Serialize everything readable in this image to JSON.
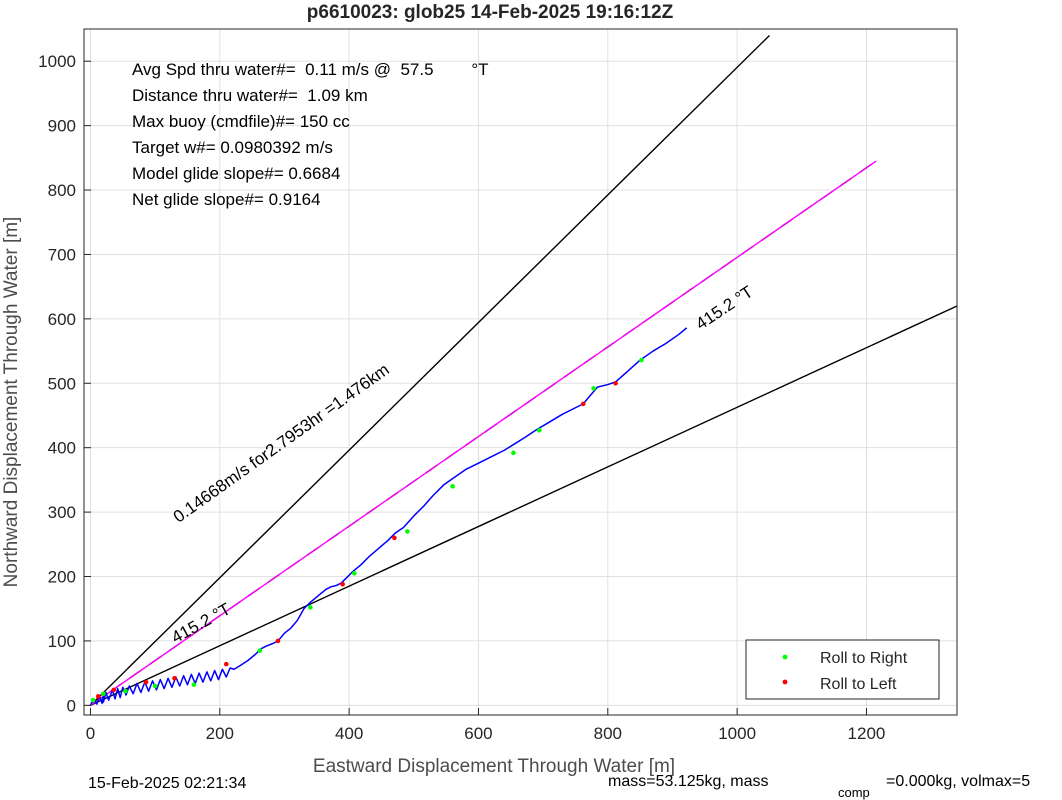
{
  "chart_data": {
    "type": "line",
    "title": "p6610023: glob25 14-Feb-2025 19:16:12Z",
    "xlabel": "Eastward Displacement Through Water [m]",
    "ylabel": "Northward Displacement Through Water [m]",
    "xlim": [
      -10,
      1340
    ],
    "ylim": [
      -15,
      1050
    ],
    "xticks": [
      0,
      200,
      400,
      600,
      800,
      1000,
      1200
    ],
    "yticks": [
      0,
      100,
      200,
      300,
      400,
      500,
      600,
      700,
      800,
      900,
      1000
    ],
    "grid": true,
    "legend_position": "bottom-right",
    "legend": [
      {
        "label": "Roll to Right",
        "color": "#00ff00"
      },
      {
        "label": "Roll to Left",
        "color": "#ff0000"
      }
    ],
    "info_lines": [
      "Avg Spd thru water#=  0.11 m/s @  57.5        °T",
      "Distance thru water#=  1.09 km",
      "Max buoy (cmdfile)#= 150 cc",
      "Target w#= 0.0980392 m/s",
      "Model glide slope#= 0.6684",
      "Net glide slope#= 0.9164"
    ],
    "annotations": [
      {
        "text": "415.2 °T",
        "x": 985,
        "y": 610,
        "angle": 33.6
      },
      {
        "text": "0.14668m/s for2.7953hr =1.476km",
        "x": 300,
        "y": 400,
        "angle": 35.5
      },
      {
        "text": "415.2 °T",
        "x": 175,
        "y": 120,
        "angle": 29
      }
    ],
    "reference_lines": [
      {
        "name": "upper-bound",
        "x": [
          0,
          1050
        ],
        "y": [
          0,
          1040
        ],
        "color": "#000000"
      },
      {
        "name": "lower-bound",
        "x": [
          0,
          1340
        ],
        "y": [
          0,
          620
        ],
        "color": "#000000"
      },
      {
        "name": "mean-heading",
        "x": [
          0,
          1215
        ],
        "y": [
          0,
          845
        ],
        "color": "#000000",
        "dash": true
      },
      {
        "name": "mean-heading-overlay",
        "x": [
          0,
          1215
        ],
        "y": [
          0,
          845
        ],
        "color": "#ff00ff"
      }
    ],
    "series": [
      {
        "color": "#0000ff",
        "x": [
          0,
          5,
          10,
          14,
          18,
          20,
          20,
          24,
          28,
          34,
          38,
          42,
          46,
          50,
          55,
          60,
          66,
          72,
          78,
          84,
          90,
          96,
          102,
          108,
          114,
          120,
          126,
          132,
          138,
          144,
          150,
          156,
          162,
          168,
          174,
          180,
          186,
          192,
          198,
          204,
          210,
          216,
          222,
          232,
          244,
          256,
          264,
          272,
          282,
          290,
          300,
          310,
          320,
          330,
          340,
          352,
          364,
          372,
          380,
          388,
          396,
          406,
          418,
          432,
          446,
          460,
          472,
          484,
          500,
          516,
          530,
          546,
          560,
          580,
          600,
          620,
          640,
          656,
          672,
          690,
          710,
          730,
          750,
          762,
          772,
          784,
          800,
          812,
          830,
          850,
          870,
          890,
          910,
          922
        ],
        "y": [
          0,
          10,
          2,
          15,
          3,
          18,
          5,
          20,
          8,
          24,
          10,
          26,
          12,
          28,
          16,
          30,
          18,
          34,
          20,
          36,
          22,
          38,
          24,
          40,
          26,
          42,
          28,
          44,
          30,
          46,
          32,
          48,
          34,
          50,
          36,
          52,
          38,
          54,
          40,
          56,
          44,
          58,
          56,
          62,
          70,
          80,
          88,
          92,
          96,
          100,
          112,
          120,
          132,
          150,
          160,
          170,
          180,
          184,
          186,
          190,
          198,
          208,
          218,
          232,
          244,
          256,
          268,
          276,
          294,
          310,
          326,
          342,
          352,
          366,
          376,
          386,
          396,
          406,
          416,
          428,
          440,
          452,
          462,
          468,
          480,
          494,
          498,
          502,
          518,
          536,
          550,
          562,
          576,
          586
        ]
      }
    ],
    "roll_right": [
      [
        4,
        8
      ],
      [
        20,
        18
      ],
      [
        54,
        22
      ],
      [
        100,
        30
      ],
      [
        160,
        32
      ],
      [
        262,
        85
      ],
      [
        340,
        152
      ],
      [
        408,
        205
      ],
      [
        490,
        270
      ],
      [
        560,
        340
      ],
      [
        654,
        392
      ],
      [
        694,
        427
      ],
      [
        778,
        492
      ],
      [
        852,
        536
      ]
    ],
    "roll_left": [
      [
        12,
        14
      ],
      [
        36,
        24
      ],
      [
        86,
        36
      ],
      [
        130,
        42
      ],
      [
        210,
        64
      ],
      [
        290,
        100
      ],
      [
        390,
        188
      ],
      [
        470,
        260
      ],
      [
        762,
        468
      ],
      [
        812,
        500
      ]
    ],
    "footer_left": "15-Feb-2025 02:21:34",
    "footer_right_a": "mass=53.125kg, mass",
    "footer_right_sub": "comp",
    "footer_right_b": "=0.000kg, volmax=5"
  }
}
